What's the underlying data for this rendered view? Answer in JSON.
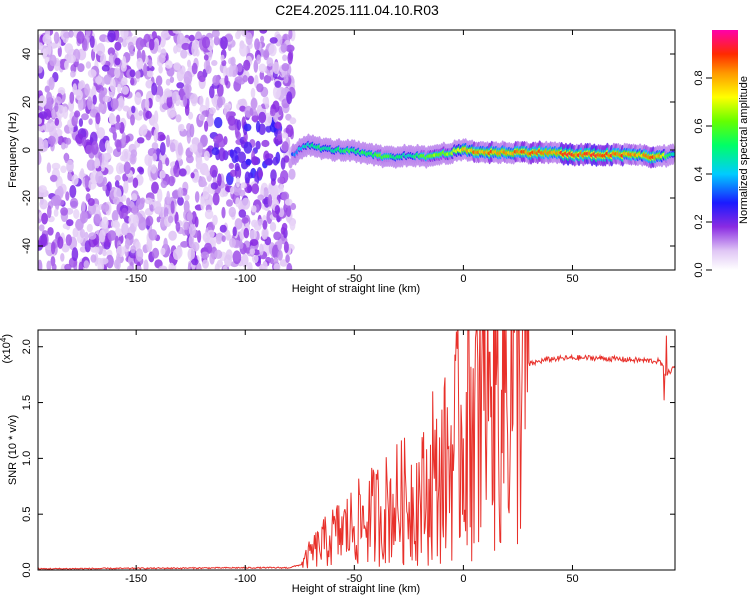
{
  "title": "C2E4.2025.111.04.10.R03",
  "chart_data": [
    {
      "type": "heatmap",
      "xlabel": "Height of straight line (km)",
      "ylabel": "Frequency (Hz)",
      "xlim": [
        -195,
        97
      ],
      "ylim": [
        -50,
        50
      ],
      "x_ticks": [
        -150,
        -100,
        -50,
        0,
        50
      ],
      "y_ticks": [
        -40,
        -20,
        0,
        20,
        40
      ],
      "colorbar": {
        "label": "Normalized spectral amplitude",
        "range": [
          0,
          1
        ],
        "ticks": [
          0.0,
          0.2,
          0.4,
          0.6,
          0.8
        ],
        "tick_labels": [
          "0.0",
          "0.2",
          "0.4",
          "0.6",
          "0.8"
        ]
      },
      "noise_region": {
        "x_range": [
          -195,
          -78
        ],
        "y_range": [
          -50,
          50
        ]
      },
      "ridge": {
        "x": [
          -78,
          -72,
          -66,
          -60,
          -54,
          -48,
          -42,
          -36,
          -30,
          -24,
          -18,
          -12,
          -6,
          0,
          10,
          20,
          30,
          40,
          50,
          60,
          70,
          80,
          88,
          96
        ],
        "y": [
          -2,
          2,
          1,
          0,
          0,
          -1,
          -2,
          -3,
          -3,
          -2,
          -3,
          -2,
          -1,
          0,
          -1,
          -1,
          -1,
          -1,
          -2,
          -2,
          -2,
          -2,
          -3,
          -2
        ],
        "amplitude": [
          0.35,
          0.5,
          0.55,
          0.5,
          0.6,
          0.55,
          0.6,
          0.65,
          0.55,
          0.5,
          0.65,
          0.7,
          0.7,
          0.85,
          0.9,
          0.9,
          0.9,
          0.92,
          0.95,
          0.95,
          0.95,
          0.85,
          0.95,
          0.5
        ]
      }
    },
    {
      "type": "line",
      "xlabel": "Height of straight line (km)",
      "ylabel": "SNR (10 * v/v)",
      "scale_label": "(x10",
      "scale_exponent": "4",
      "scale_close": ")",
      "xlim": [
        -195,
        97
      ],
      "ylim": [
        0,
        2.15
      ],
      "x_ticks": [
        -150,
        -100,
        -50,
        0,
        50
      ],
      "y_ticks": [
        0.0,
        0.5,
        1.0,
        1.5,
        2.0
      ],
      "y_tick_labels": [
        "0.0",
        "0.5",
        "1.0",
        "1.5",
        "2.0"
      ],
      "color": "#e8302a",
      "envelope": {
        "x": [
          -195,
          -100,
          -80,
          -74,
          -70,
          -60,
          -50,
          -40,
          -30,
          -20,
          -14,
          -10,
          -5,
          0,
          5,
          10,
          15,
          20,
          25,
          30,
          35,
          40,
          50,
          60,
          70,
          80,
          90,
          93,
          97
        ],
        "y": [
          0.01,
          0.02,
          0.02,
          0.05,
          0.15,
          0.3,
          0.4,
          0.5,
          0.6,
          0.65,
          0.7,
          0.85,
          1.05,
          1.25,
          1.45,
          1.55,
          1.65,
          1.72,
          1.78,
          1.84,
          1.87,
          1.89,
          1.9,
          1.9,
          1.89,
          1.88,
          1.87,
          1.75,
          1.82
        ]
      },
      "spikes": [
        {
          "x": -14,
          "y": 1.6
        },
        {
          "x": 6,
          "y": 2.15
        },
        {
          "x": 12,
          "y": 1.95
        },
        {
          "x": 93,
          "y": 2.1
        },
        {
          "x": 7,
          "y": 0.25
        },
        {
          "x": 92,
          "y": 1.52
        }
      ]
    }
  ]
}
